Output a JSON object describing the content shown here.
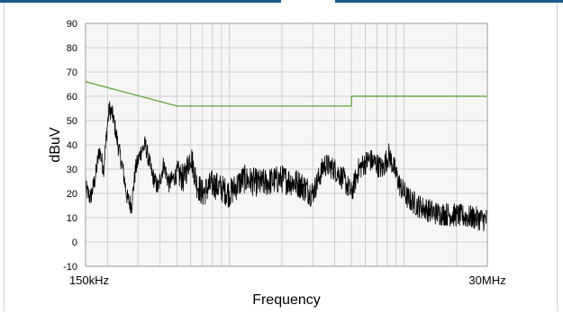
{
  "chart_data": {
    "type": "line",
    "title": "",
    "xlabel": "Frequency",
    "ylabel": "dBuV",
    "x_scale": "log",
    "x_range_mhz": [
      0.15,
      30
    ],
    "xlim_labels": {
      "start": "150kHz",
      "end": "30MHz"
    },
    "ylim": [
      -10,
      90
    ],
    "y_ticks": [
      "90",
      "80",
      "70",
      "60",
      "50",
      "40",
      "30",
      "20",
      "10",
      "0",
      "-10"
    ],
    "grid": true,
    "legend": "none",
    "series": [
      {
        "role": "limit",
        "color": "#6aab47",
        "points_mhz_dbuv": [
          [
            0.15,
            66
          ],
          [
            0.5,
            56
          ],
          [
            5,
            56
          ],
          [
            5,
            60
          ],
          [
            30,
            60
          ]
        ]
      },
      {
        "role": "measurement",
        "color": "#000000",
        "envelope_mhz_dbuv": [
          [
            0.15,
            22
          ],
          [
            0.16,
            18
          ],
          [
            0.17,
            26
          ],
          [
            0.18,
            38
          ],
          [
            0.19,
            30
          ],
          [
            0.2,
            48
          ],
          [
            0.205,
            55
          ],
          [
            0.215,
            52
          ],
          [
            0.23,
            40
          ],
          [
            0.245,
            30
          ],
          [
            0.26,
            18
          ],
          [
            0.275,
            15
          ],
          [
            0.29,
            30
          ],
          [
            0.31,
            37
          ],
          [
            0.33,
            40
          ],
          [
            0.36,
            28
          ],
          [
            0.39,
            22
          ],
          [
            0.42,
            32
          ],
          [
            0.45,
            24
          ],
          [
            0.5,
            28
          ],
          [
            0.55,
            26
          ],
          [
            0.6,
            36
          ],
          [
            0.65,
            24
          ],
          [
            0.7,
            20
          ],
          [
            0.8,
            24
          ],
          [
            0.9,
            22
          ],
          [
            1.0,
            20
          ],
          [
            1.2,
            26
          ],
          [
            1.5,
            24
          ],
          [
            2.0,
            26
          ],
          [
            2.5,
            24
          ],
          [
            3.0,
            20
          ],
          [
            3.5,
            32
          ],
          [
            4.0,
            30
          ],
          [
            4.5,
            26
          ],
          [
            5.0,
            20
          ],
          [
            5.5,
            30
          ],
          [
            6.3,
            34
          ],
          [
            7.0,
            32
          ],
          [
            7.5,
            30
          ],
          [
            8.2,
            36
          ],
          [
            8.8,
            30
          ],
          [
            9.5,
            23
          ],
          [
            10.5,
            18
          ],
          [
            12,
            15
          ],
          [
            15,
            12
          ],
          [
            20,
            11
          ],
          [
            25,
            10
          ],
          [
            30,
            9
          ]
        ]
      }
    ]
  }
}
